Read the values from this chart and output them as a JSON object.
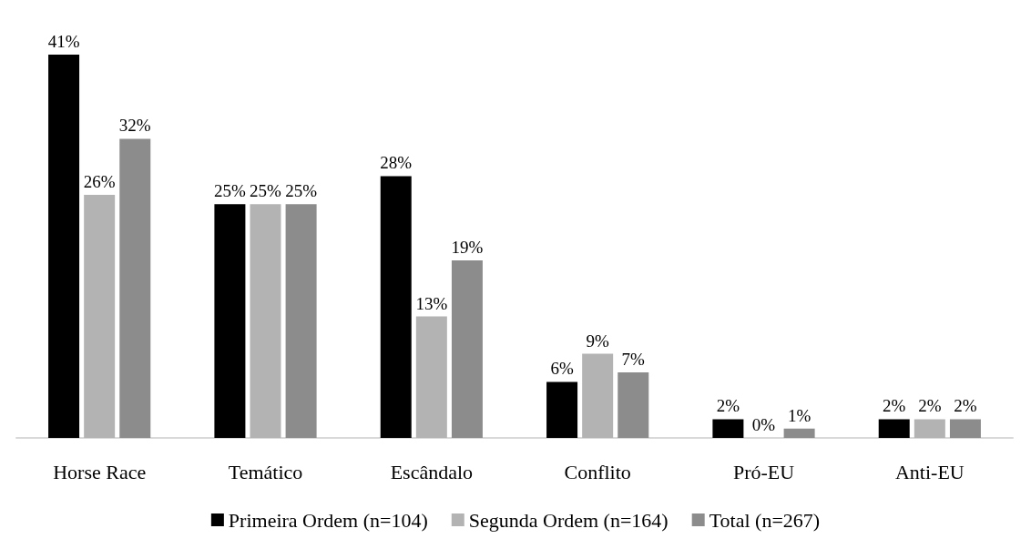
{
  "chart_data": {
    "type": "bar",
    "categories": [
      "Horse Race",
      "Temático",
      "Escândalo",
      "Conflito",
      "Pró-EU",
      "Anti-EU"
    ],
    "series": [
      {
        "name": "Primeira Ordem (n=104)",
        "color": "#000000",
        "values": [
          41,
          25,
          28,
          6,
          2,
          2
        ],
        "value_labels": [
          "41%",
          "25%",
          "28%",
          "6%",
          "2%",
          "2%"
        ]
      },
      {
        "name": "Segunda Ordem (n=164)",
        "color": "#b3b3b3",
        "values": [
          26,
          25,
          13,
          9,
          0,
          2
        ],
        "value_labels": [
          "26%",
          "25%",
          "13%",
          "9%",
          "0%",
          "2%"
        ]
      },
      {
        "name": "Total (n=267)",
        "color": "#8c8c8c",
        "values": [
          32,
          25,
          19,
          7,
          1,
          2
        ],
        "value_labels": [
          "32%",
          "25%",
          "19%",
          "7%",
          "1%",
          "2%"
        ]
      }
    ],
    "legend": "bottom"
  }
}
